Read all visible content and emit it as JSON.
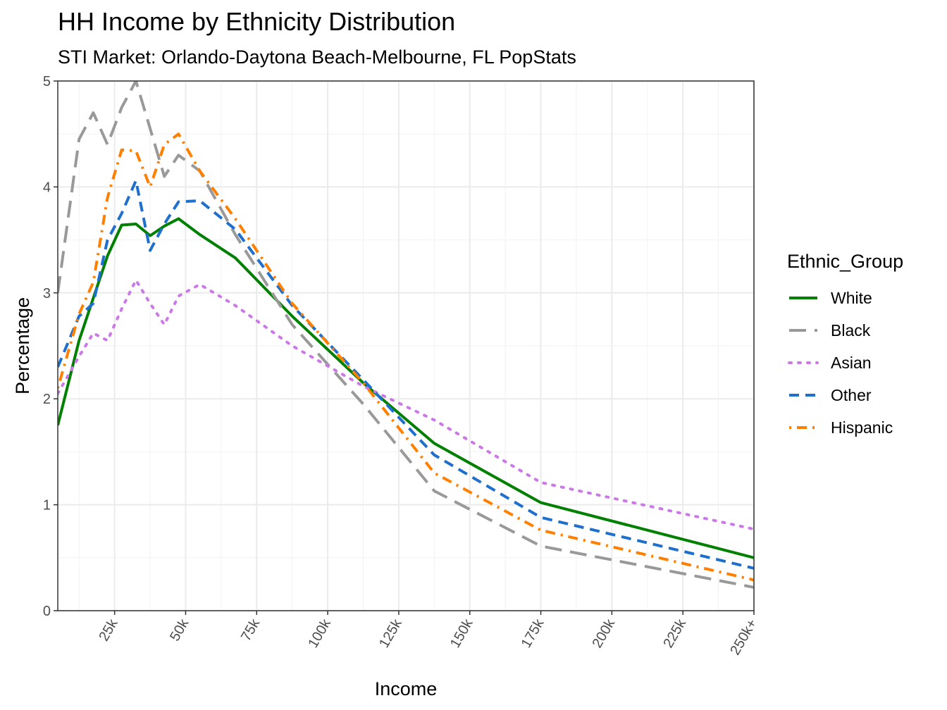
{
  "chart_data": {
    "type": "line",
    "title": "HH Income by Ethnicity Distribution",
    "subtitle": "STI Market: Orlando-Daytona Beach-Melbourne, FL PopStats",
    "xlabel": "Income",
    "ylabel": "Percentage",
    "xlim": [
      5,
      250
    ],
    "ylim": [
      0,
      5
    ],
    "x_ticks": [
      25,
      50,
      75,
      100,
      125,
      150,
      175,
      200,
      225,
      250
    ],
    "x_tick_labels": [
      "25k",
      "50k",
      "75k",
      "100k",
      "125k",
      "150k",
      "175k",
      "200k",
      "225k",
      "250k+"
    ],
    "y_ticks": [
      0,
      1,
      2,
      3,
      4,
      5
    ],
    "y_tick_labels": [
      "0",
      "1",
      "2",
      "3",
      "4",
      "5"
    ],
    "grid": true,
    "legend": {
      "title": "Ethnic_Group",
      "position": "right"
    },
    "x": [
      5,
      12.5,
      17.5,
      22.5,
      27.5,
      32.5,
      37.5,
      42.5,
      47.5,
      55,
      67.5,
      87.5,
      112.5,
      137.5,
      175,
      250
    ],
    "series": [
      {
        "name": "White",
        "color": "#008000",
        "dash": "solid",
        "values": [
          1.75,
          2.55,
          2.95,
          3.35,
          3.64,
          3.65,
          3.54,
          3.63,
          3.7,
          3.55,
          3.33,
          2.78,
          2.15,
          1.58,
          1.02,
          0.5
        ]
      },
      {
        "name": "Black",
        "color": "#999999",
        "dash": "longdash",
        "values": [
          3.0,
          4.45,
          4.7,
          4.4,
          4.75,
          5.0,
          4.55,
          4.1,
          4.3,
          4.15,
          3.55,
          2.7,
          1.95,
          1.13,
          0.61,
          0.22
        ]
      },
      {
        "name": "Asian",
        "color": "#cc79e8",
        "dash": "dotted",
        "values": [
          2.05,
          2.4,
          2.62,
          2.55,
          2.85,
          3.12,
          2.9,
          2.7,
          2.97,
          3.08,
          2.88,
          2.5,
          2.12,
          1.8,
          1.21,
          0.77
        ]
      },
      {
        "name": "Other",
        "color": "#1f6fcc",
        "dash": "dashed",
        "values": [
          2.3,
          2.78,
          2.9,
          3.5,
          3.75,
          4.06,
          3.4,
          3.65,
          3.86,
          3.87,
          3.6,
          2.88,
          2.18,
          1.47,
          0.88,
          0.4
        ]
      },
      {
        "name": "Hispanic",
        "color": "#ff8000",
        "dash": "dotdash",
        "values": [
          2.1,
          2.8,
          3.1,
          3.9,
          4.35,
          4.34,
          4.0,
          4.4,
          4.5,
          4.15,
          3.7,
          2.9,
          2.15,
          1.3,
          0.76,
          0.29
        ]
      }
    ]
  }
}
